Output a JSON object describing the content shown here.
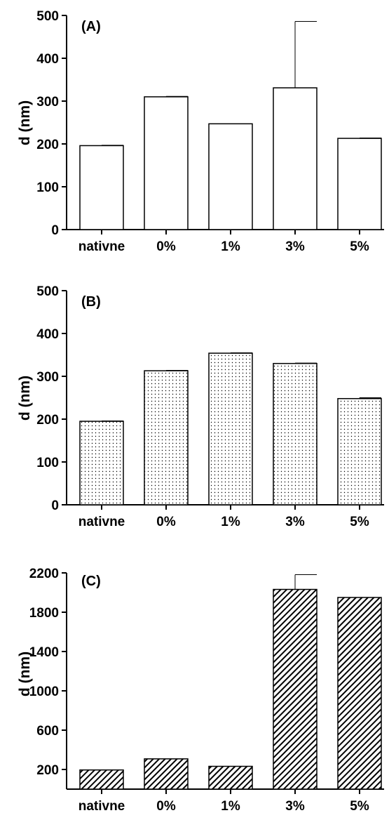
{
  "chart_data": [
    {
      "type": "bar",
      "panel_label": "(A)",
      "categories": [
        "nativne",
        "0%",
        "1%",
        "3%",
        "5%"
      ],
      "values": [
        196,
        310,
        247,
        331,
        213
      ],
      "errors": [
        1,
        1,
        0,
        155,
        1
      ],
      "ylabel": "d (nm)",
      "xlabel": "",
      "ylim": [
        0,
        500
      ],
      "yticks": [
        0,
        100,
        200,
        300,
        400,
        500
      ],
      "fill": "none",
      "legend": "none",
      "grid": false
    },
    {
      "type": "bar",
      "panel_label": "(B)",
      "categories": [
        "nativne",
        "0%",
        "1%",
        "3%",
        "5%"
      ],
      "values": [
        195,
        313,
        354,
        330,
        248
      ],
      "errors": [
        1,
        1,
        1,
        1,
        2
      ],
      "ylabel": "d (nm)",
      "xlabel": "",
      "ylim": [
        0,
        500
      ],
      "yticks": [
        0,
        100,
        200,
        300,
        400,
        500
      ],
      "fill": "dots",
      "legend": "none",
      "grid": false
    },
    {
      "type": "bar",
      "panel_label": "(C)",
      "categories": [
        "nativne",
        "0%",
        "1%",
        "3%",
        "5%"
      ],
      "values": [
        195,
        308,
        232,
        2032,
        1950
      ],
      "errors": [
        0,
        0,
        0,
        150,
        0
      ],
      "ylabel": "d (nm)",
      "xlabel": "",
      "ylim": [
        0,
        2200
      ],
      "yticks": [
        200,
        600,
        1000,
        1400,
        1800,
        2200
      ],
      "fill": "hatch",
      "legend": "none",
      "grid": false
    }
  ]
}
